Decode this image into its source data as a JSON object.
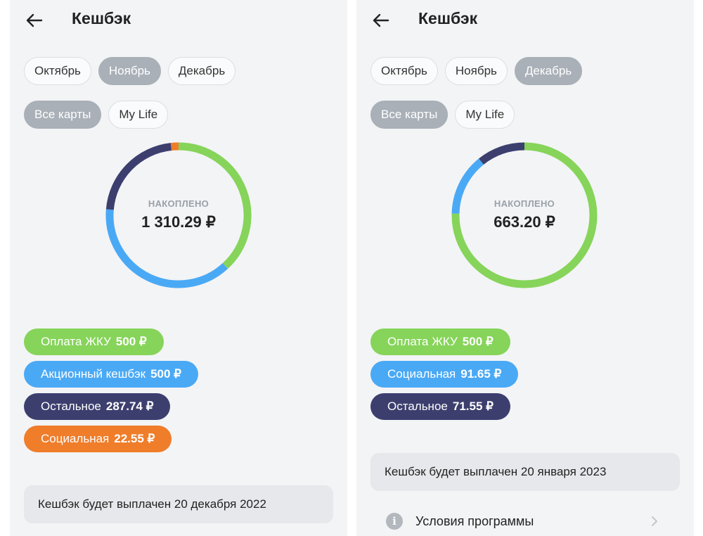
{
  "colors": {
    "green": "#86d45a",
    "blue": "#4aa9f5",
    "navy": "#3c3f6e",
    "orange": "#ef7d2a",
    "chip_active": "#a9b0b7"
  },
  "left": {
    "title": "Кешбэк",
    "months": [
      "Октябрь",
      "Ноябрь",
      "Декабрь"
    ],
    "active_month": "Ноябрь",
    "cards": [
      "Все карты",
      "My Life"
    ],
    "active_card": "Все карты",
    "donut_caption": "НАКОПЛЕНО",
    "total": "1 310.29 ₽",
    "categories": [
      {
        "name": "Оплата ЖКУ",
        "amount": "500 ₽",
        "value": 500,
        "color": "#86d45a"
      },
      {
        "name": "Акционный кешбэк",
        "amount": "500 ₽",
        "value": 500,
        "color": "#4aa9f5"
      },
      {
        "name": "Остальное",
        "amount": "287.74 ₽",
        "value": 287.74,
        "color": "#3c3f6e"
      },
      {
        "name": "Социальная",
        "amount": "22.55 ₽",
        "value": 22.55,
        "color": "#ef7d2a"
      }
    ],
    "payout_note": "Кешбэк будет выплачен 20 декабря 2022"
  },
  "right": {
    "title": "Кешбэк",
    "months": [
      "Октябрь",
      "Ноябрь",
      "Декабрь"
    ],
    "active_month": "Декабрь",
    "cards": [
      "Все карты",
      "My Life"
    ],
    "active_card": "Все карты",
    "donut_caption": "НАКОПЛЕНО",
    "total": "663.20 ₽",
    "categories": [
      {
        "name": "Оплата ЖКУ",
        "amount": "500 ₽",
        "value": 500,
        "color": "#86d45a"
      },
      {
        "name": "Социальная",
        "amount": "91.65 ₽",
        "value": 91.65,
        "color": "#4aa9f5"
      },
      {
        "name": "Остальное",
        "amount": "71.55 ₽",
        "value": 71.55,
        "color": "#3c3f6e"
      }
    ],
    "payout_note": "Кешбэк будет выплачен 20 января 2023",
    "terms_label": "Условия программы"
  }
}
